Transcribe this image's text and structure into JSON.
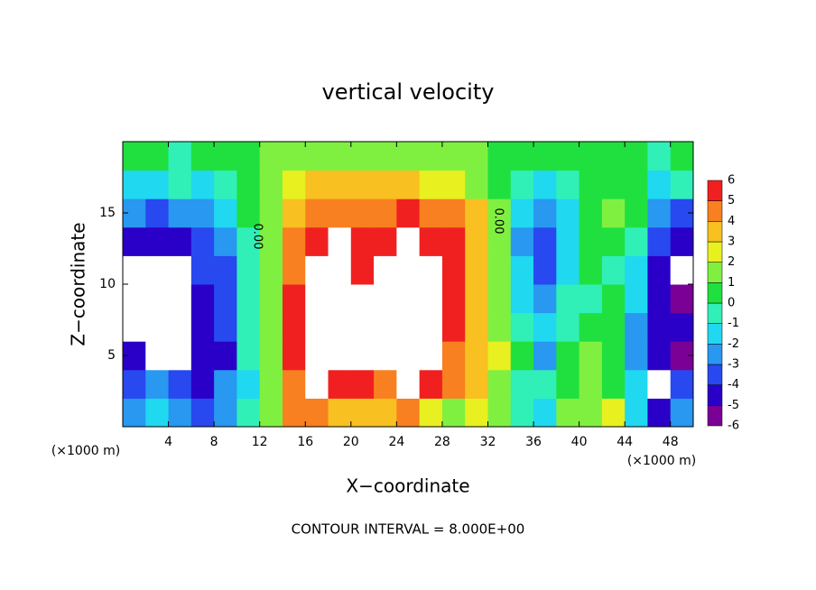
{
  "chart_data": {
    "type": "contour",
    "title": "vertical velocity",
    "x_label": "X−coordinate",
    "y_label": "Z−coordinate",
    "x_unit_left": "(×1000 m)",
    "x_unit_right": "(×1000 m)",
    "footer": "CONTOUR INTERVAL = 8.000E+00",
    "annotations": [
      "0.00",
      "0.00"
    ],
    "xlim": [
      0,
      50
    ],
    "ylim": [
      0,
      20
    ],
    "xticks": [
      4,
      8,
      12,
      16,
      20,
      24,
      28,
      32,
      36,
      40,
      44,
      48
    ],
    "yticks": [
      5,
      10,
      15
    ],
    "x": [
      1,
      3,
      5,
      7,
      9,
      11,
      13,
      15,
      17,
      19,
      21,
      23,
      25,
      27,
      29,
      31,
      33,
      35,
      37,
      39,
      41,
      43,
      45,
      47,
      49
    ],
    "z": [
      1,
      3,
      5,
      7,
      9,
      11,
      13,
      15,
      17,
      19
    ],
    "values": [
      [
        -3,
        -2,
        -3,
        -4,
        -3,
        -1,
        1,
        4.5,
        4,
        3,
        3.5,
        3,
        4,
        2.5,
        1.5,
        2.5,
        1,
        -0.5,
        -1.5,
        1,
        1.5,
        2,
        -2,
        -5,
        -3
      ],
      [
        -4,
        -3,
        -4,
        -5,
        -3,
        -1.5,
        1,
        4.5,
        6.5,
        5,
        5,
        4,
        7,
        5.5,
        4,
        3,
        1.5,
        -1,
        -1,
        0,
        1.5,
        0.5,
        -2,
        7,
        -4
      ],
      [
        -4.5,
        7,
        7,
        -4.5,
        -4.5,
        -1,
        1.5,
        5,
        7,
        7,
        7,
        7,
        7,
        7,
        4.5,
        3.5,
        2,
        0,
        -3,
        0,
        1,
        0.5,
        -3,
        -5,
        -5.5
      ],
      [
        7,
        7,
        7,
        -4.5,
        -4,
        -1,
        1.5,
        5,
        7,
        7,
        7,
        7,
        7,
        7,
        5,
        3,
        1,
        -1,
        -2,
        -0.5,
        0,
        0.5,
        -3,
        -5,
        -5
      ],
      [
        7,
        7,
        7,
        -4.5,
        -4,
        -1,
        1.5,
        5,
        7,
        6,
        6.5,
        7,
        7,
        6,
        5,
        3,
        1,
        -1.5,
        -3,
        -1,
        -0.5,
        0,
        -2,
        -5,
        -5.5
      ],
      [
        7,
        7,
        6.5,
        -4,
        -3.5,
        -1,
        1.5,
        4.5,
        7,
        7,
        5.5,
        7,
        7,
        6,
        5,
        3.5,
        1,
        -2,
        -3.5,
        -1.5,
        0,
        -0.5,
        -1.5,
        -4.5,
        6.5
      ],
      [
        -4.5,
        -5,
        -4.5,
        -4,
        -3,
        -0.5,
        1.5,
        4.5,
        5.5,
        6,
        5,
        5.5,
        6,
        5.5,
        5,
        3.5,
        1,
        -2.5,
        -3.5,
        -1.5,
        0.5,
        0,
        -1,
        -4,
        -4.5
      ],
      [
        -3,
        -3.5,
        -2.5,
        -3,
        -1.5,
        0,
        1.5,
        3.5,
        4.5,
        4.5,
        4,
        4.5,
        5,
        4.5,
        4,
        3,
        1,
        -2,
        -3,
        -1.5,
        0.5,
        1,
        0,
        -3,
        -3.5
      ],
      [
        -1.5,
        -2,
        -1,
        -1.5,
        -0.5,
        0.5,
        1.5,
        2.5,
        3,
        3,
        3,
        3,
        3,
        2.5,
        2,
        1,
        0,
        -1,
        -2,
        -1,
        0.5,
        0.5,
        0,
        -1.5,
        -1
      ],
      [
        0.5,
        0,
        -0.5,
        0,
        0.5,
        0.5,
        1,
        1,
        1,
        1,
        1,
        1,
        1,
        1,
        1,
        1,
        0.5,
        0,
        0,
        0,
        0.5,
        0.5,
        0,
        -0.5,
        0.5
      ]
    ],
    "colorbar": {
      "levels": [
        -6,
        -5,
        -4,
        -3,
        -2,
        -1,
        0,
        1,
        2,
        3,
        4,
        5,
        6
      ],
      "colors": [
        "#7a0096",
        "#2a00c8",
        "#2848f0",
        "#2898f0",
        "#20d8f0",
        "#30f0b8",
        "#20e040",
        "#80f040",
        "#e8f020",
        "#f8c020",
        "#f88020",
        "#f02020",
        "#f08888"
      ],
      "above_color": "#ffffff"
    }
  }
}
